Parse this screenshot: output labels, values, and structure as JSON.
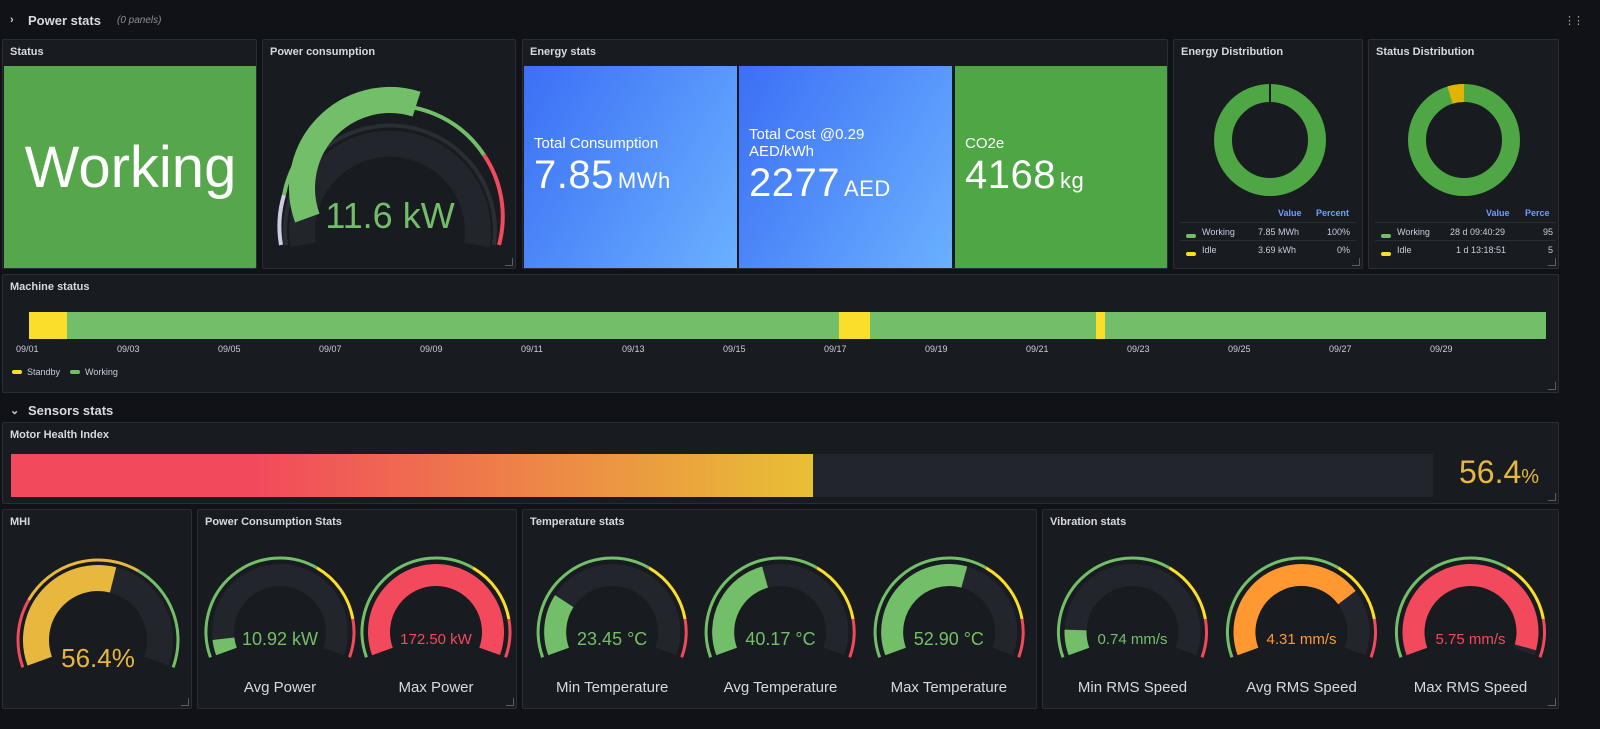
{
  "rows": {
    "power": {
      "title": "Power stats",
      "count": "(0 panels)"
    },
    "sensors": {
      "title": "Sensors stats"
    }
  },
  "status": {
    "title": "Status",
    "value": "Working",
    "color": "#56a64b"
  },
  "power_consumption": {
    "title": "Power consumption",
    "value": "11.6 kW",
    "level": 0.58
  },
  "energy": {
    "title": "Energy stats",
    "total": {
      "label": "Total Consumption",
      "value": "7.85",
      "unit": "MWh"
    },
    "cost": {
      "label": "Total Cost @0.29 AED/kWh",
      "value": "2277",
      "unit": "AED"
    },
    "co2": {
      "label": "CO2e",
      "value": "4168",
      "unit": "kg"
    }
  },
  "energy_dist": {
    "title": "Energy Distribution",
    "headers": [
      "Value",
      "Percent"
    ],
    "rows": [
      {
        "name": "Working",
        "value": "7.85 MWh",
        "pct": "100%",
        "color": "#73bf69"
      },
      {
        "name": "Idle",
        "value": "3.69 kWh",
        "pct": "0%",
        "color": "#fade2a"
      }
    ]
  },
  "status_dist": {
    "title": "Status Distribution",
    "headers": [
      "Value",
      "Perce"
    ],
    "rows": [
      {
        "name": "Working",
        "value": "28 d 09:40:29",
        "pct": "95",
        "color": "#73bf69"
      },
      {
        "name": "Idle",
        "value": "1 d 13:18:51",
        "pct": "5",
        "color": "#fade2a"
      }
    ]
  },
  "machine_status": {
    "title": "Machine status",
    "ticks": [
      "09/01",
      "09/03",
      "09/05",
      "09/07",
      "09/09",
      "09/11",
      "09/13",
      "09/15",
      "09/17",
      "09/19",
      "09/21",
      "09/23",
      "09/25",
      "09/27",
      "09/29"
    ],
    "legend": [
      {
        "name": "Standby",
        "color": "#fade2a"
      },
      {
        "name": "Working",
        "color": "#73bf69"
      }
    ],
    "segments": [
      {
        "state": "Standby",
        "start": 0,
        "end": 0.025
      },
      {
        "state": "Working",
        "start": 0.025,
        "end": 0.534
      },
      {
        "state": "Standby",
        "start": 0.534,
        "end": 0.555
      },
      {
        "state": "Working",
        "start": 0.555,
        "end": 0.704
      },
      {
        "state": "Standby",
        "start": 0.704,
        "end": 0.71
      },
      {
        "state": "Working",
        "start": 0.71,
        "end": 1
      }
    ]
  },
  "mhi_bar": {
    "title": "Motor Health Index",
    "value": "56.4",
    "unit": "%",
    "level": 0.564
  },
  "mhi": {
    "title": "MHI",
    "value": "56.4%",
    "level": 0.564
  },
  "power_stats": {
    "title": "Power Consumption Stats",
    "gauges": [
      {
        "label": "Avg Power",
        "value": "10.92 kW",
        "level": 0.06,
        "color": "#73bf69"
      },
      {
        "label": "Max Power",
        "value": "172.50 kW",
        "level": 1.0,
        "color": "#f2495c"
      }
    ]
  },
  "temp_stats": {
    "title": "Temperature stats",
    "gauges": [
      {
        "label": "Min Temperature",
        "value": "23.45 °C",
        "level": 0.24,
        "color": "#73bf69"
      },
      {
        "label": "Avg Temperature",
        "value": "40.17 °C",
        "level": 0.43,
        "color": "#73bf69"
      },
      {
        "label": "Max Temperature",
        "value": "52.90 °C",
        "level": 0.57,
        "color": "#73bf69"
      }
    ]
  },
  "vib_stats": {
    "title": "Vibration stats",
    "gauges": [
      {
        "label": "Min RMS Speed",
        "value": "0.74 mm/s",
        "level": 0.1,
        "color": "#73bf69"
      },
      {
        "label": "Avg RMS Speed",
        "value": "4.31 mm/s",
        "level": 0.74,
        "color": "#ff9830"
      },
      {
        "label": "Max RMS Speed",
        "value": "5.75 mm/s",
        "level": 0.98,
        "color": "#f2495c"
      }
    ]
  }
}
